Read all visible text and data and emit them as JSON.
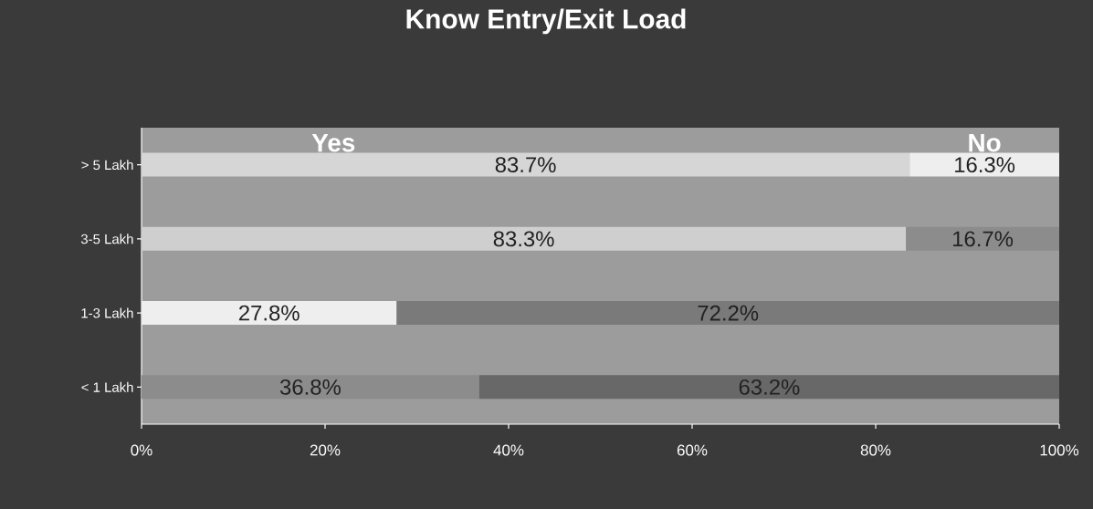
{
  "chart_data": {
    "type": "bar",
    "orientation": "horizontal",
    "stacked": true,
    "title": "Know Entry/Exit Load",
    "categories": [
      "> 5 Lakh",
      "3-5 Lakh",
      "1-3 Lakh",
      "< 1 Lakh"
    ],
    "series": [
      {
        "name": "Yes",
        "colors": [
          "#d6d6d6",
          "#cfcfcf",
          "#eeeeee",
          "#8c8c8c"
        ],
        "values": [
          83.7,
          83.3,
          27.8,
          36.8
        ],
        "value_labels": [
          "83.7%",
          "83.3%",
          "27.8%",
          "36.8%"
        ]
      },
      {
        "name": "No",
        "colors": [
          "#eeeeee",
          "#8c8c8c",
          "#7a7a7a",
          "#686868"
        ],
        "values": [
          16.3,
          16.7,
          72.2,
          63.2
        ],
        "value_labels": [
          "16.3%",
          "16.7%",
          "72.2%",
          "63.2%"
        ]
      }
    ],
    "xlim": [
      0,
      100
    ],
    "xticks": [
      {
        "value": 0,
        "label": "0%"
      },
      {
        "value": 20,
        "label": "20%"
      },
      {
        "value": 40,
        "label": "40%"
      },
      {
        "value": 60,
        "label": "60%"
      },
      {
        "value": 80,
        "label": "80%"
      },
      {
        "value": 100,
        "label": "100%"
      }
    ],
    "grid": false,
    "legend": false
  }
}
